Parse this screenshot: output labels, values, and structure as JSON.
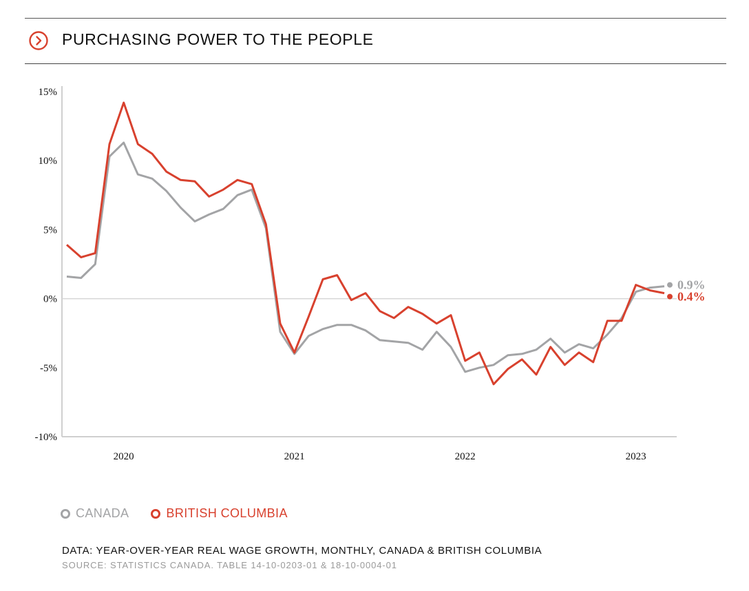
{
  "header": {
    "title": "PURCHASING POWER TO THE PEOPLE",
    "icon": "chevron-right-circle-icon"
  },
  "colors": {
    "canada": "#a3a4a6",
    "bc": "#d8412e",
    "accent": "#d8412e"
  },
  "legend": [
    {
      "label": "CANADA",
      "color": "#a3a4a6"
    },
    {
      "label": "BRITISH COLUMBIA",
      "color": "#d8412e"
    }
  ],
  "footer": {
    "note": "DATA: YEAR-OVER-YEAR REAL WAGE GROWTH, MONTHLY, CANADA & BRITISH COLUMBIA",
    "source": "SOURCE: STATISTICS CANADA. TABLE 14-10-0203-01 & 18-10-0004-01"
  },
  "chart_data": {
    "type": "line",
    "title": "PURCHASING POWER TO THE PEOPLE",
    "xlabel": "",
    "ylabel": "",
    "ylim": [
      -10,
      15
    ],
    "yticks": [
      15,
      10,
      5,
      0,
      -5,
      -10
    ],
    "ytick_labels": [
      "15%",
      "10%",
      "5%",
      "0%",
      "-5%",
      "-10%"
    ],
    "xticks": [
      "2020",
      "2021",
      "2022",
      "2023"
    ],
    "grid": false,
    "legend_position": "bottom-left",
    "x": [
      "2019-09",
      "2019-10",
      "2019-11",
      "2019-12",
      "2020-01",
      "2020-02",
      "2020-03",
      "2020-04",
      "2020-05",
      "2020-06",
      "2020-07",
      "2020-08",
      "2020-09",
      "2020-10",
      "2020-11",
      "2020-12",
      "2021-01",
      "2021-02",
      "2021-03",
      "2021-04",
      "2021-05",
      "2021-06",
      "2021-07",
      "2021-08",
      "2021-09",
      "2021-10",
      "2021-11",
      "2021-12",
      "2022-01",
      "2022-02",
      "2022-03",
      "2022-04",
      "2022-05",
      "2022-06",
      "2022-07",
      "2022-08",
      "2022-09",
      "2022-10",
      "2022-11",
      "2022-12",
      "2023-01",
      "2023-02",
      "2023-03"
    ],
    "series": [
      {
        "name": "CANADA",
        "color": "#a3a4a6",
        "end_label": "0.9%",
        "values": [
          1.6,
          1.5,
          2.5,
          10.3,
          11.3,
          9.0,
          8.7,
          7.8,
          6.6,
          5.6,
          6.1,
          6.5,
          7.5,
          7.9,
          5.1,
          -2.4,
          -4.0,
          -2.7,
          -2.2,
          -1.9,
          -1.9,
          -2.3,
          -3.0,
          -3.1,
          -3.2,
          -3.7,
          -2.4,
          -3.5,
          -5.3,
          -5.0,
          -4.8,
          -4.1,
          -4.0,
          -3.7,
          -2.9,
          -3.9,
          -3.3,
          -3.6,
          -2.6,
          -1.4,
          0.5,
          0.8,
          0.9
        ]
      },
      {
        "name": "BRITISH COLUMBIA",
        "color": "#d8412e",
        "end_label": "0.4%",
        "values": [
          3.9,
          3.0,
          3.3,
          11.2,
          14.2,
          11.2,
          10.5,
          9.2,
          8.6,
          8.5,
          7.4,
          7.9,
          8.6,
          8.3,
          5.4,
          -1.8,
          -3.9,
          -1.3,
          1.4,
          1.7,
          -0.1,
          0.4,
          -0.9,
          -1.4,
          -0.6,
          -1.1,
          -1.8,
          -1.2,
          -4.5,
          -3.9,
          -6.2,
          -5.1,
          -4.4,
          -5.5,
          -3.5,
          -4.8,
          -3.9,
          -4.6,
          -1.6,
          -1.6,
          1.0,
          0.6,
          0.4
        ]
      }
    ]
  }
}
